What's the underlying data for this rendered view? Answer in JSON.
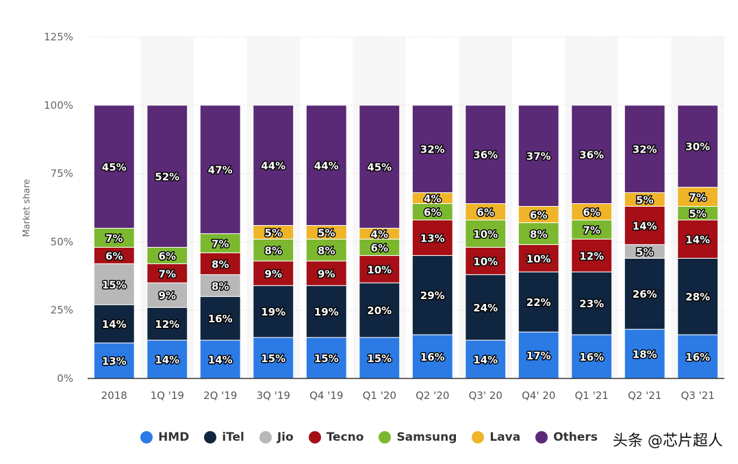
{
  "chart_data": {
    "type": "stacked-bar",
    "title": "",
    "xlabel": "",
    "ylabel": "Market share",
    "ylim": [
      0,
      125
    ],
    "yticks": [
      "0%",
      "25%",
      "50%",
      "75%",
      "100%",
      "125%"
    ],
    "grid": true,
    "legend_position": "bottom",
    "categories": [
      "2018",
      "1Q '19",
      "2Q '19",
      "3Q '19",
      "Q4 '19",
      "Q1 '20",
      "Q2 '20",
      "Q3' 20",
      "Q4' 20",
      "Q1 '21",
      "Q2 '21",
      "Q3 '21"
    ],
    "series": [
      {
        "name": "HMD",
        "color": "#2c7be5",
        "values": [
          13,
          14,
          14,
          15,
          15,
          15,
          16,
          14,
          17,
          16,
          18,
          16
        ]
      },
      {
        "name": "iTel",
        "color": "#10253f",
        "values": [
          14,
          12,
          16,
          19,
          19,
          20,
          29,
          24,
          22,
          23,
          26,
          28
        ]
      },
      {
        "name": "Jio",
        "color": "#b8b8b8",
        "values": [
          15,
          9,
          8,
          0,
          0,
          0,
          0,
          0,
          0,
          0,
          5,
          0
        ]
      },
      {
        "name": "Tecno",
        "color": "#a50f15",
        "values": [
          6,
          7,
          8,
          9,
          9,
          10,
          13,
          10,
          10,
          12,
          14,
          14
        ]
      },
      {
        "name": "Samsung",
        "color": "#7cb82f",
        "values": [
          7,
          6,
          7,
          8,
          8,
          6,
          6,
          10,
          8,
          7,
          0,
          5
        ]
      },
      {
        "name": "Lava",
        "color": "#f0b429",
        "values": [
          0,
          0,
          0,
          5,
          5,
          4,
          4,
          6,
          6,
          6,
          5,
          7
        ]
      },
      {
        "name": "Others",
        "color": "#5a2a76",
        "values": [
          45,
          52,
          47,
          44,
          44,
          45,
          32,
          36,
          37,
          36,
          32,
          30
        ]
      }
    ]
  },
  "watermark": "头条 @芯片超人"
}
